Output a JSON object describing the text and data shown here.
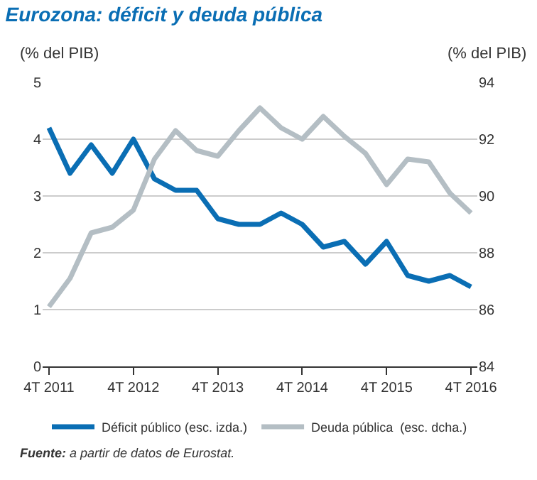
{
  "chart_data": {
    "type": "line",
    "title": "Eurozona: déficit y deuda pública",
    "ylabel": "(% del PIB)",
    "y2label": "(% del PIB)",
    "categories": [
      "4T 2011",
      null,
      null,
      null,
      "4T 2012",
      null,
      null,
      null,
      "4T 2013",
      null,
      null,
      null,
      "4T 2014",
      null,
      null,
      null,
      "4T 2015",
      null,
      null,
      null,
      "4T 2016"
    ],
    "series": [
      {
        "name": "Déficit público (esc. izda.)",
        "color": "#0a6eb4",
        "values": [
          4.2,
          3.4,
          3.9,
          3.4,
          4.0,
          3.3,
          3.1,
          3.1,
          2.6,
          2.5,
          2.5,
          2.7,
          2.5,
          2.1,
          2.2,
          1.8,
          2.2,
          1.6,
          1.5,
          1.6,
          1.4
        ]
      },
      {
        "name": "Deuda pública  (esc. dcha.)",
        "color": "#b4bec4",
        "axis": "y2",
        "values": [
          86.1,
          87.1,
          88.7,
          88.9,
          89.5,
          91.3,
          92.3,
          91.6,
          91.4,
          92.3,
          93.1,
          92.4,
          92.0,
          92.8,
          92.1,
          91.5,
          90.4,
          91.3,
          91.2,
          90.1,
          89.4
        ]
      }
    ],
    "ylim": [
      0,
      5
    ],
    "yticks": [
      0,
      1,
      2,
      3,
      4,
      5
    ],
    "y2lim": [
      84,
      94
    ],
    "y2ticks": [
      84,
      86,
      88,
      90,
      92,
      94
    ],
    "grid": "y",
    "legend": "bottom",
    "marker": "none",
    "line_style": "solid",
    "annotations": [
      "Fuente: a partir de datos de Eurostat."
    ]
  }
}
